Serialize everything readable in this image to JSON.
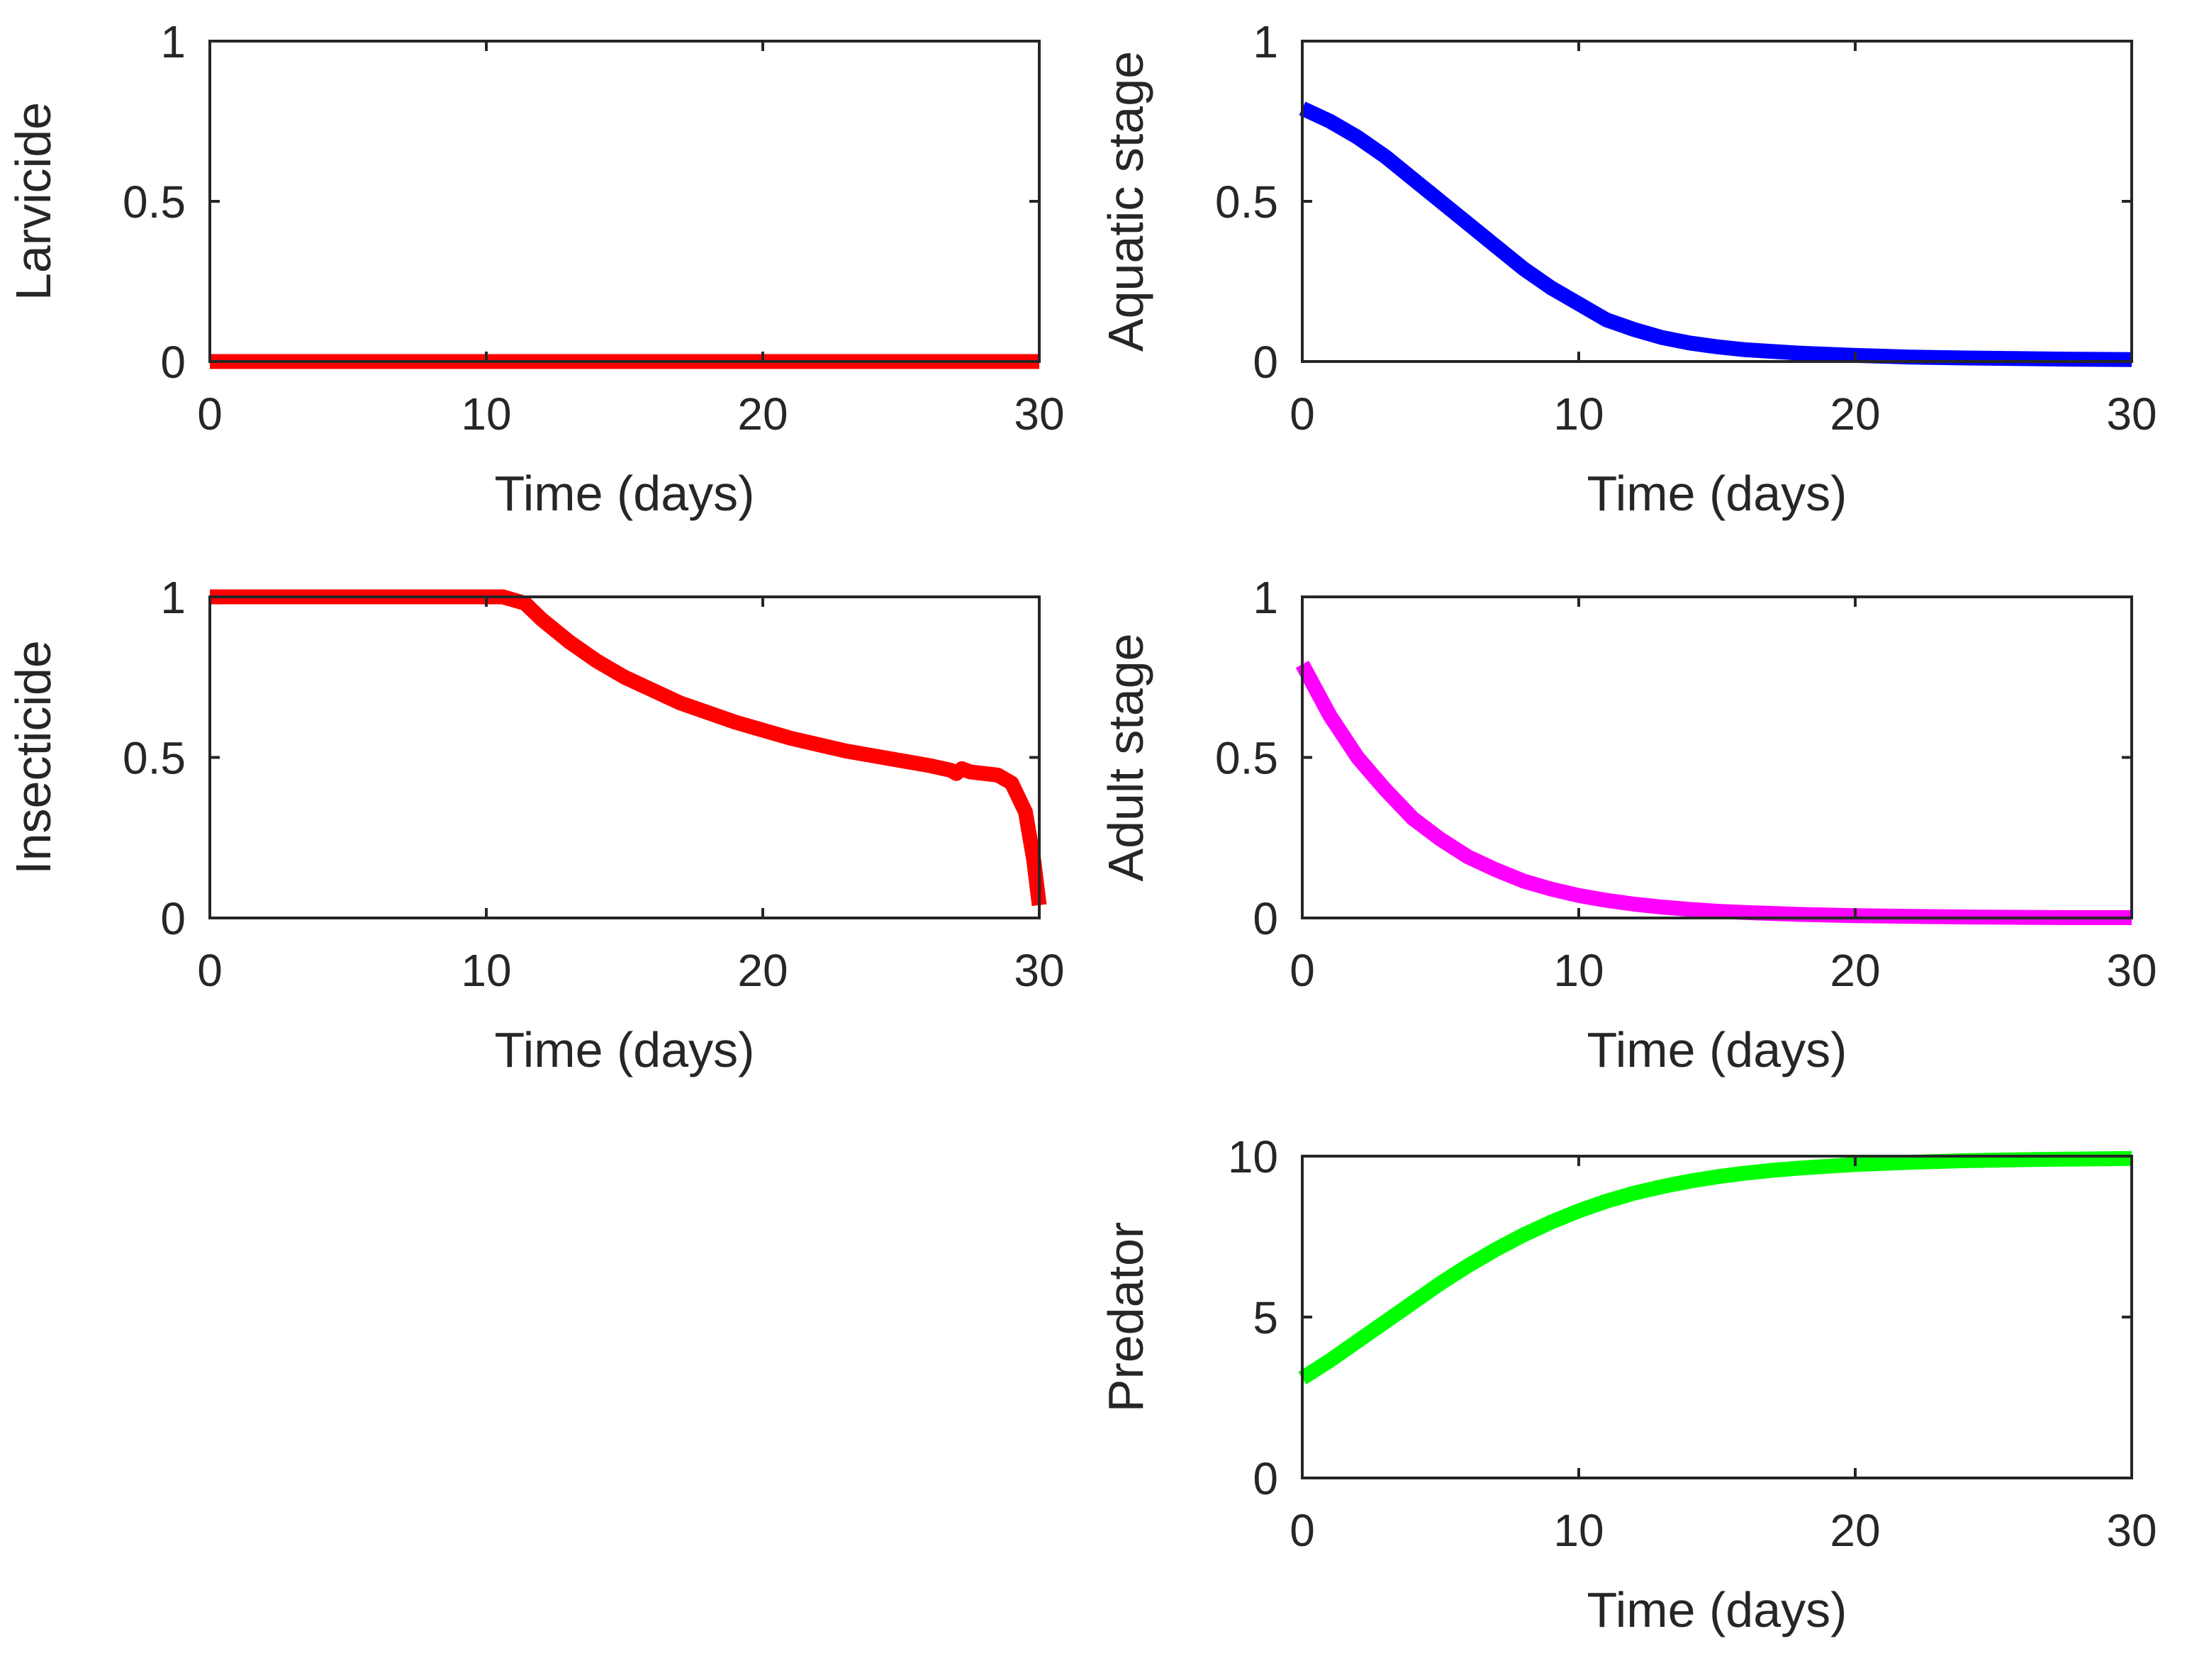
{
  "chart_data": [
    {
      "type": "line",
      "id": "larvicide",
      "ylabel": "Larvicide",
      "xlabel": "Time (days)",
      "xlim": [
        0,
        30
      ],
      "ylim": [
        0,
        1
      ],
      "xticks": [
        "0",
        "10",
        "20",
        "30"
      ],
      "yticks": [
        "0",
        "0.5",
        "1"
      ],
      "series": [
        {
          "name": "Larvicide",
          "color": "#ff0000",
          "x": [
            0,
            5,
            10,
            15,
            20,
            25,
            30
          ],
          "y": [
            0,
            0,
            0,
            0,
            0,
            0,
            0
          ]
        }
      ]
    },
    {
      "type": "line",
      "id": "aquatic",
      "ylabel": "Aquatic stage",
      "xlabel": "Time (days)",
      "xlim": [
        0,
        30
      ],
      "ylim": [
        0,
        1
      ],
      "xticks": [
        "0",
        "10",
        "20",
        "30"
      ],
      "yticks": [
        "0",
        "0.5",
        "1"
      ],
      "series": [
        {
          "name": "Aquatic stage",
          "color": "#0000ff",
          "x": [
            0,
            1,
            2,
            3,
            4,
            5,
            6,
            7,
            8,
            9,
            10,
            11,
            12,
            13,
            14,
            15,
            16,
            18,
            20,
            22,
            24,
            26,
            28,
            30
          ],
          "y": [
            0.79,
            0.75,
            0.7,
            0.64,
            0.57,
            0.5,
            0.43,
            0.36,
            0.29,
            0.23,
            0.18,
            0.13,
            0.1,
            0.075,
            0.058,
            0.046,
            0.037,
            0.026,
            0.019,
            0.014,
            0.011,
            0.009,
            0.007,
            0.006
          ]
        }
      ]
    },
    {
      "type": "line",
      "id": "insecticide",
      "ylabel": "Insecticide",
      "xlabel": "Time (days)",
      "xlim": [
        0,
        30
      ],
      "ylim": [
        0,
        1
      ],
      "xticks": [
        "0",
        "10",
        "20",
        "30"
      ],
      "yticks": [
        "0",
        "0.5",
        "1"
      ],
      "series": [
        {
          "name": "Insecticide",
          "color": "#ff0000",
          "x": [
            0,
            5,
            10,
            10.6,
            11.4,
            12,
            13,
            14,
            15,
            16,
            17,
            18,
            19,
            20,
            21,
            22,
            23,
            24,
            25,
            26,
            26.8,
            27,
            27.2,
            27.5,
            28,
            28.5,
            29,
            29.5,
            29.8,
            30
          ],
          "y": [
            1,
            1,
            1,
            1,
            0.98,
            0.93,
            0.86,
            0.8,
            0.75,
            0.71,
            0.67,
            0.64,
            0.61,
            0.585,
            0.56,
            0.54,
            0.52,
            0.505,
            0.49,
            0.475,
            0.46,
            0.45,
            0.465,
            0.455,
            0.45,
            0.445,
            0.42,
            0.33,
            0.18,
            0.04
          ]
        }
      ]
    },
    {
      "type": "line",
      "id": "adult",
      "ylabel": "Adult stage",
      "xlabel": "Time (days)",
      "xlim": [
        0,
        30
      ],
      "ylim": [
        0,
        1
      ],
      "xticks": [
        "0",
        "10",
        "20",
        "30"
      ],
      "yticks": [
        "0",
        "0.5",
        "1"
      ],
      "series": [
        {
          "name": "Adult stage",
          "color": "#ff00ff",
          "x": [
            0,
            1,
            2,
            3,
            4,
            5,
            6,
            7,
            8,
            9,
            10,
            11,
            12,
            13,
            14,
            15,
            16,
            18,
            20,
            22,
            24,
            26,
            28,
            30
          ],
          "y": [
            0.79,
            0.63,
            0.5,
            0.4,
            0.31,
            0.245,
            0.19,
            0.15,
            0.115,
            0.09,
            0.07,
            0.055,
            0.043,
            0.034,
            0.027,
            0.021,
            0.017,
            0.011,
            0.007,
            0.005,
            0.003,
            0.002,
            0.001,
            0.001
          ]
        }
      ]
    },
    {
      "type": "line",
      "id": "predator",
      "ylabel": "Predator",
      "xlabel": "Time (days)",
      "xlim": [
        0,
        30
      ],
      "ylim": [
        0,
        10
      ],
      "xticks": [
        "0",
        "10",
        "20",
        "30"
      ],
      "yticks": [
        "0",
        "5",
        "10"
      ],
      "series": [
        {
          "name": "Predator",
          "color": "#00ff00",
          "x": [
            0,
            1,
            2,
            3,
            4,
            5,
            6,
            7,
            8,
            9,
            10,
            11,
            12,
            13,
            14,
            15,
            16,
            17,
            18,
            20,
            22,
            24,
            26,
            28,
            30
          ],
          "y": [
            3.1,
            3.65,
            4.25,
            4.85,
            5.45,
            6.05,
            6.6,
            7.1,
            7.55,
            7.95,
            8.3,
            8.6,
            8.85,
            9.05,
            9.22,
            9.36,
            9.47,
            9.56,
            9.63,
            9.74,
            9.81,
            9.86,
            9.89,
            9.91,
            9.93
          ]
        }
      ]
    }
  ]
}
